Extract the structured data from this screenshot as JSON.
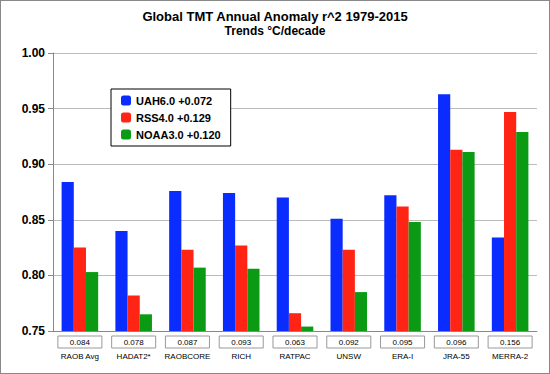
{
  "chart_data": {
    "type": "bar",
    "title": "Global TMT Annual Anomaly r^2 1979-2015",
    "subtitle": "Trends °C/decade",
    "categories": [
      "RAOB Avg",
      "HADAT2*",
      "RAOBCORE",
      "RICH",
      "RATPAC",
      "UNSW",
      "ERA-I",
      "JRA-55",
      "MERRA-2"
    ],
    "trends": [
      0.084,
      0.078,
      0.087,
      0.093,
      0.063,
      0.092,
      0.095,
      0.096,
      0.156
    ],
    "series": [
      {
        "name": "UAH6.0 +0.072",
        "color": "#0a2cff",
        "values": [
          0.884,
          0.84,
          0.876,
          0.874,
          0.87,
          0.851,
          0.872,
          0.963,
          0.834
        ]
      },
      {
        "name": "RSS4.0 +0.129",
        "color": "#ff2414",
        "values": [
          0.825,
          0.782,
          0.823,
          0.827,
          0.766,
          0.823,
          0.862,
          0.913,
          0.947
        ]
      },
      {
        "name": "NOAA3.0 +0.120",
        "color": "#0a9a14",
        "values": [
          0.803,
          0.765,
          0.807,
          0.806,
          0.754,
          0.785,
          0.848,
          0.911,
          0.929
        ]
      }
    ],
    "ylim": [
      0.75,
      1.0
    ],
    "yticks": [
      0.75,
      {
        "value": 0.8,
        "label": "0.80"
      },
      0.85,
      {
        "value": 0.9,
        "label": "0.90"
      },
      0.95,
      {
        "value": 1.0,
        "label": "1.00"
      }
    ],
    "grid": true,
    "legend": "upper left"
  }
}
